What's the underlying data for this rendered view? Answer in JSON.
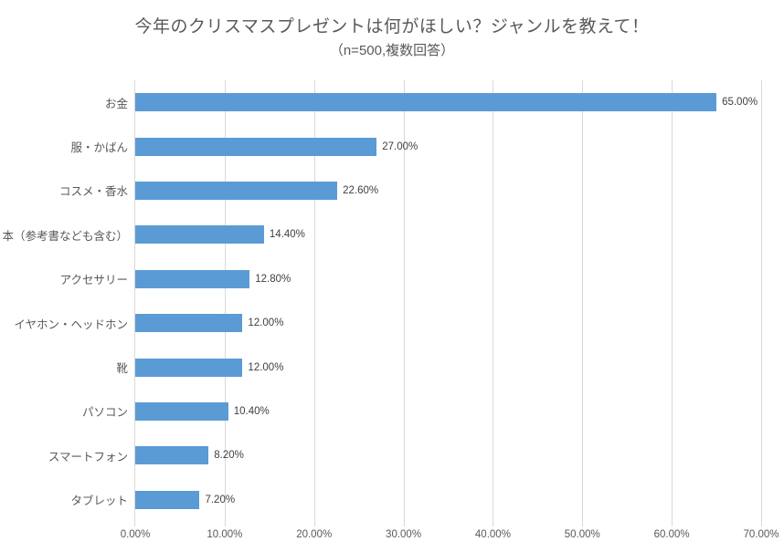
{
  "chart_data": {
    "type": "bar",
    "orientation": "horizontal",
    "title": "今年のクリスマスプレゼントは何がほしい？ジャンルを教えて！",
    "subtitle": "（n=500,複数回答）",
    "categories": [
      "お金",
      "服・かばん",
      "コスメ・香水",
      "本（参考書なども含む）",
      "アクセサリー",
      "イヤホン・ヘッドホン",
      "靴",
      "パソコン",
      "スマートフォン",
      "タブレット"
    ],
    "values": [
      65.0,
      27.0,
      22.6,
      14.4,
      12.8,
      12.0,
      12.0,
      10.4,
      8.2,
      7.2
    ],
    "value_labels": [
      "65.00%",
      "27.00%",
      "22.60%",
      "14.40%",
      "12.80%",
      "12.00%",
      "12.00%",
      "10.40%",
      "8.20%",
      "7.20%"
    ],
    "x_tick_labels": [
      "0.00%",
      "10.00%",
      "20.00%",
      "30.00%",
      "40.00%",
      "50.00%",
      "60.00%",
      "70.00%"
    ],
    "xlim": [
      0,
      70
    ],
    "grid": true,
    "legend_position": "none",
    "colors": {
      "bar": "#5b9bd5",
      "title_text": "#595959",
      "axis_text": "#595959",
      "value_text": "#404040",
      "gridline": "#d9d9d9",
      "background": "#ffffff"
    }
  }
}
